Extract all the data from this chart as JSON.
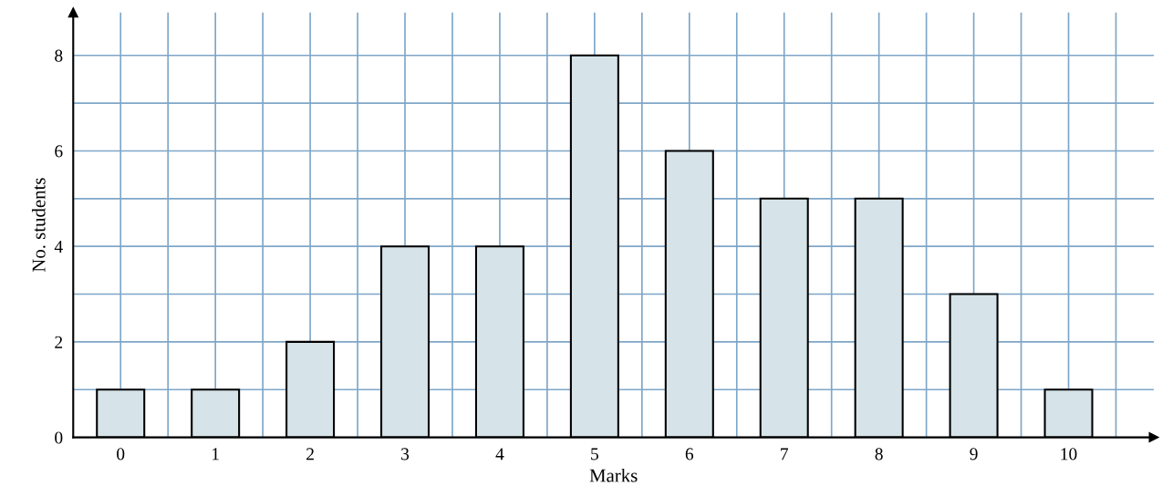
{
  "chart_data": {
    "type": "bar",
    "xlabel": "Marks",
    "ylabel": "No. students",
    "categories": [
      "0",
      "1",
      "2",
      "3",
      "4",
      "5",
      "6",
      "7",
      "8",
      "9",
      "10"
    ],
    "values": [
      1,
      1,
      2,
      4,
      4,
      8,
      6,
      5,
      5,
      3,
      1
    ],
    "color": "#d6e4e9",
    "ylim": [
      0,
      8.9
    ],
    "yticks": [
      0,
      {
        "value": 1,
        "label": null
      },
      2,
      {
        "value": 3,
        "label": null
      },
      4,
      {
        "value": 5,
        "label": null
      },
      6,
      {
        "value": 7,
        "label": null
      },
      8
    ],
    "grid": true
  }
}
